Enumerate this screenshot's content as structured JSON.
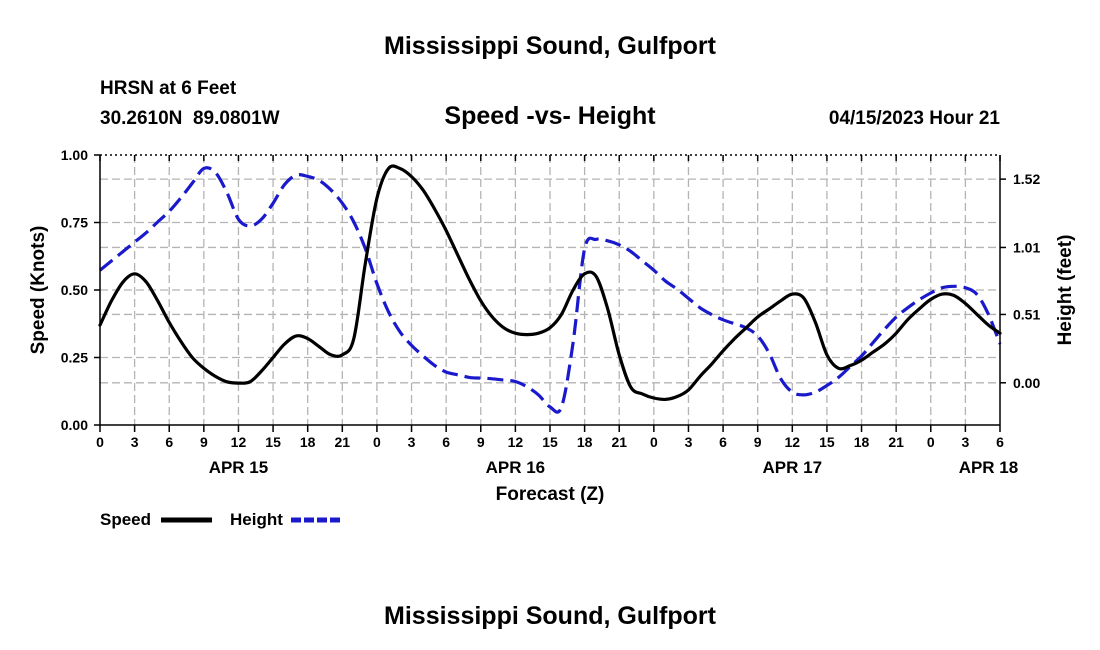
{
  "title": "Mississippi Sound, Gulfport",
  "footer_title": "Mississippi Sound, Gulfport",
  "station": {
    "name": "HRSN at 6 Feet",
    "coords": "30.2610N  89.0801W",
    "timestamp": "04/15/2023 Hour 21"
  },
  "colors": {
    "speed": "#000000",
    "height": "#1a1acc",
    "grid": "#b4b4b4"
  },
  "chart_data": {
    "type": "line",
    "title": "Speed -vs- Height",
    "xlabel": "Forecast (Z)",
    "ylabel_left": "Speed (Knots)",
    "ylabel_right": "Height (feet)",
    "x_unit": "hours from APR 15 00Z",
    "x_range": [
      0,
      78
    ],
    "y_left_range": [
      0,
      1.0
    ],
    "y_right_range": [
      -0.315,
      1.7
    ],
    "x_ticks": [
      {
        "x": 0,
        "label": "0"
      },
      {
        "x": 3,
        "label": "3"
      },
      {
        "x": 6,
        "label": "6"
      },
      {
        "x": 9,
        "label": "9"
      },
      {
        "x": 12,
        "label": "12"
      },
      {
        "x": 15,
        "label": "15"
      },
      {
        "x": 18,
        "label": "18"
      },
      {
        "x": 21,
        "label": "21"
      },
      {
        "x": 24,
        "label": "0"
      },
      {
        "x": 27,
        "label": "3"
      },
      {
        "x": 30,
        "label": "6"
      },
      {
        "x": 33,
        "label": "9"
      },
      {
        "x": 36,
        "label": "12"
      },
      {
        "x": 39,
        "label": "15"
      },
      {
        "x": 42,
        "label": "18"
      },
      {
        "x": 45,
        "label": "21"
      },
      {
        "x": 48,
        "label": "0"
      },
      {
        "x": 51,
        "label": "3"
      },
      {
        "x": 54,
        "label": "6"
      },
      {
        "x": 57,
        "label": "9"
      },
      {
        "x": 60,
        "label": "12"
      },
      {
        "x": 63,
        "label": "15"
      },
      {
        "x": 66,
        "label": "18"
      },
      {
        "x": 69,
        "label": "21"
      },
      {
        "x": 72,
        "label": "0"
      },
      {
        "x": 75,
        "label": "3"
      },
      {
        "x": 78,
        "label": "6"
      }
    ],
    "date_labels": [
      {
        "x": 12,
        "label": "APR 15"
      },
      {
        "x": 36,
        "label": "APR 16"
      },
      {
        "x": 60,
        "label": "APR 17"
      },
      {
        "x": 77,
        "label": "APR 18"
      }
    ],
    "y_left_ticks": [
      "0.00",
      "0.25",
      "0.50",
      "0.75",
      "1.00"
    ],
    "y_left_tick_values": [
      0,
      0.25,
      0.5,
      0.75,
      1.0
    ],
    "y_right_ticks": [
      "0.00",
      "0.51",
      "1.01",
      "1.52"
    ],
    "y_right_tick_values": [
      0,
      0.51,
      1.01,
      1.52
    ],
    "series": [
      {
        "name": "Speed",
        "axis": "left",
        "x": [
          0,
          1,
          2,
          3,
          4,
          5,
          6,
          7,
          8,
          9,
          10,
          11,
          12,
          13,
          14,
          15,
          16,
          17,
          18,
          19,
          20,
          21,
          22,
          23,
          24,
          25,
          26,
          27,
          28,
          29,
          30,
          31,
          32,
          33,
          34,
          35,
          36,
          37,
          38,
          39,
          40,
          41,
          42,
          43,
          44,
          45,
          46,
          47,
          48,
          49,
          50,
          51,
          52,
          53,
          54,
          55,
          56,
          57,
          58,
          59,
          60,
          61,
          62,
          63,
          64,
          65,
          66,
          67,
          68,
          69,
          70,
          71,
          72,
          73,
          74,
          75,
          76,
          77,
          78
        ],
        "values": [
          0.37,
          0.46,
          0.53,
          0.56,
          0.53,
          0.46,
          0.38,
          0.31,
          0.25,
          0.21,
          0.18,
          0.16,
          0.155,
          0.16,
          0.2,
          0.25,
          0.3,
          0.33,
          0.32,
          0.29,
          0.26,
          0.26,
          0.32,
          0.6,
          0.84,
          0.95,
          0.95,
          0.92,
          0.87,
          0.8,
          0.72,
          0.63,
          0.54,
          0.46,
          0.4,
          0.36,
          0.34,
          0.335,
          0.34,
          0.36,
          0.41,
          0.5,
          0.56,
          0.55,
          0.43,
          0.26,
          0.14,
          0.115,
          0.1,
          0.095,
          0.105,
          0.13,
          0.18,
          0.225,
          0.275,
          0.32,
          0.36,
          0.4,
          0.43,
          0.46,
          0.485,
          0.47,
          0.38,
          0.26,
          0.21,
          0.22,
          0.24,
          0.27,
          0.3,
          0.34,
          0.39,
          0.43,
          0.465,
          0.485,
          0.48,
          0.45,
          0.41,
          0.37,
          0.34
        ]
      },
      {
        "name": "Height",
        "axis": "right",
        "x": [
          0,
          1,
          2,
          3,
          4,
          5,
          6,
          7,
          8,
          9,
          10,
          11,
          12,
          13,
          14,
          15,
          16,
          17,
          18,
          19,
          20,
          21,
          22,
          23,
          24,
          25,
          26,
          27,
          28,
          29,
          30,
          31,
          32,
          33,
          34,
          35,
          36,
          37,
          38,
          39,
          40,
          41,
          42,
          43,
          44,
          45,
          46,
          47,
          48,
          49,
          50,
          51,
          52,
          53,
          54,
          55,
          56,
          57,
          58,
          59,
          60,
          61,
          62,
          63,
          64,
          65,
          66,
          67,
          68,
          69,
          70,
          71,
          72,
          73,
          74,
          75,
          76,
          77,
          78
        ],
        "values": [
          0.84,
          0.91,
          0.98,
          1.05,
          1.12,
          1.2,
          1.28,
          1.38,
          1.49,
          1.6,
          1.57,
          1.42,
          1.22,
          1.17,
          1.22,
          1.34,
          1.48,
          1.55,
          1.54,
          1.51,
          1.44,
          1.34,
          1.2,
          1.0,
          0.74,
          0.53,
          0.38,
          0.28,
          0.2,
          0.13,
          0.08,
          0.06,
          0.04,
          0.035,
          0.03,
          0.02,
          0.01,
          -0.03,
          -0.09,
          -0.18,
          -0.18,
          0.3,
          1.0,
          1.07,
          1.06,
          1.03,
          0.98,
          0.91,
          0.84,
          0.76,
          0.7,
          0.63,
          0.56,
          0.51,
          0.47,
          0.44,
          0.41,
          0.35,
          0.22,
          0.03,
          -0.07,
          -0.09,
          -0.07,
          -0.02,
          0.04,
          0.12,
          0.2,
          0.3,
          0.4,
          0.49,
          0.56,
          0.62,
          0.67,
          0.71,
          0.72,
          0.71,
          0.66,
          0.51,
          0.29
        ]
      }
    ],
    "legend": [
      {
        "label": "Speed",
        "color": "#000000",
        "style": "solid"
      },
      {
        "label": "Height",
        "color": "#1a1acc",
        "style": "dashed"
      }
    ],
    "grid": true
  }
}
